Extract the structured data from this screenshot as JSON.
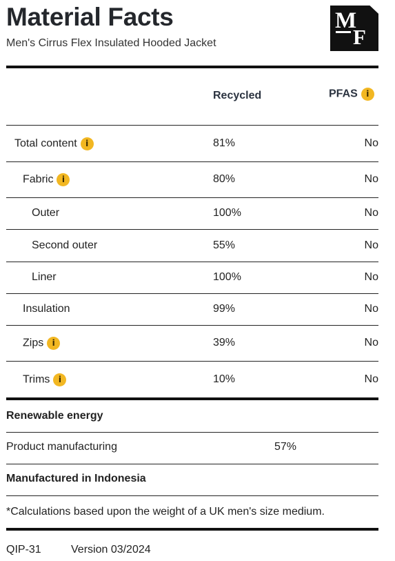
{
  "header": {
    "title": "Material Facts",
    "subtitle": "Men's Cirrus Flex Insulated Hooded Jacket",
    "logo_letters": [
      "M",
      "F"
    ]
  },
  "table": {
    "columns": {
      "recycled": "Recycled",
      "pfas": "PFAS"
    },
    "rows": [
      {
        "label": "Total content",
        "info": true,
        "indent": 0,
        "recycled": "81%",
        "pfas": "No"
      },
      {
        "label": "Fabric",
        "info": true,
        "indent": 1,
        "recycled": "80%",
        "pfas": "No"
      },
      {
        "label": "Outer",
        "info": false,
        "indent": 2,
        "recycled": "100%",
        "pfas": "No"
      },
      {
        "label": "Second outer",
        "info": false,
        "indent": 2,
        "recycled": "55%",
        "pfas": "No"
      },
      {
        "label": "Liner",
        "info": false,
        "indent": 2,
        "recycled": "100%",
        "pfas": "No"
      },
      {
        "label": "Insulation",
        "info": false,
        "indent": 1,
        "recycled": "99%",
        "pfas": "No"
      },
      {
        "label": "Zips",
        "info": true,
        "indent": 1,
        "recycled": "39%",
        "pfas": "No"
      },
      {
        "label": "Trims",
        "info": true,
        "indent": 1,
        "recycled": "10%",
        "pfas": "No"
      }
    ]
  },
  "renewable": {
    "heading": "Renewable energy",
    "label": "Product manufacturing",
    "value": "57%"
  },
  "origin": "Manufactured in Indonesia",
  "footnote": "*Calculations based upon the weight of a UK men's size medium.",
  "footer": {
    "code": "QIP-31",
    "version": "Version 03/2024"
  },
  "icons": {
    "info": "info-icon",
    "info_glyph": "i"
  },
  "colors": {
    "info_badge": "#f2b722",
    "text": "#222222",
    "title": "#24272c"
  }
}
